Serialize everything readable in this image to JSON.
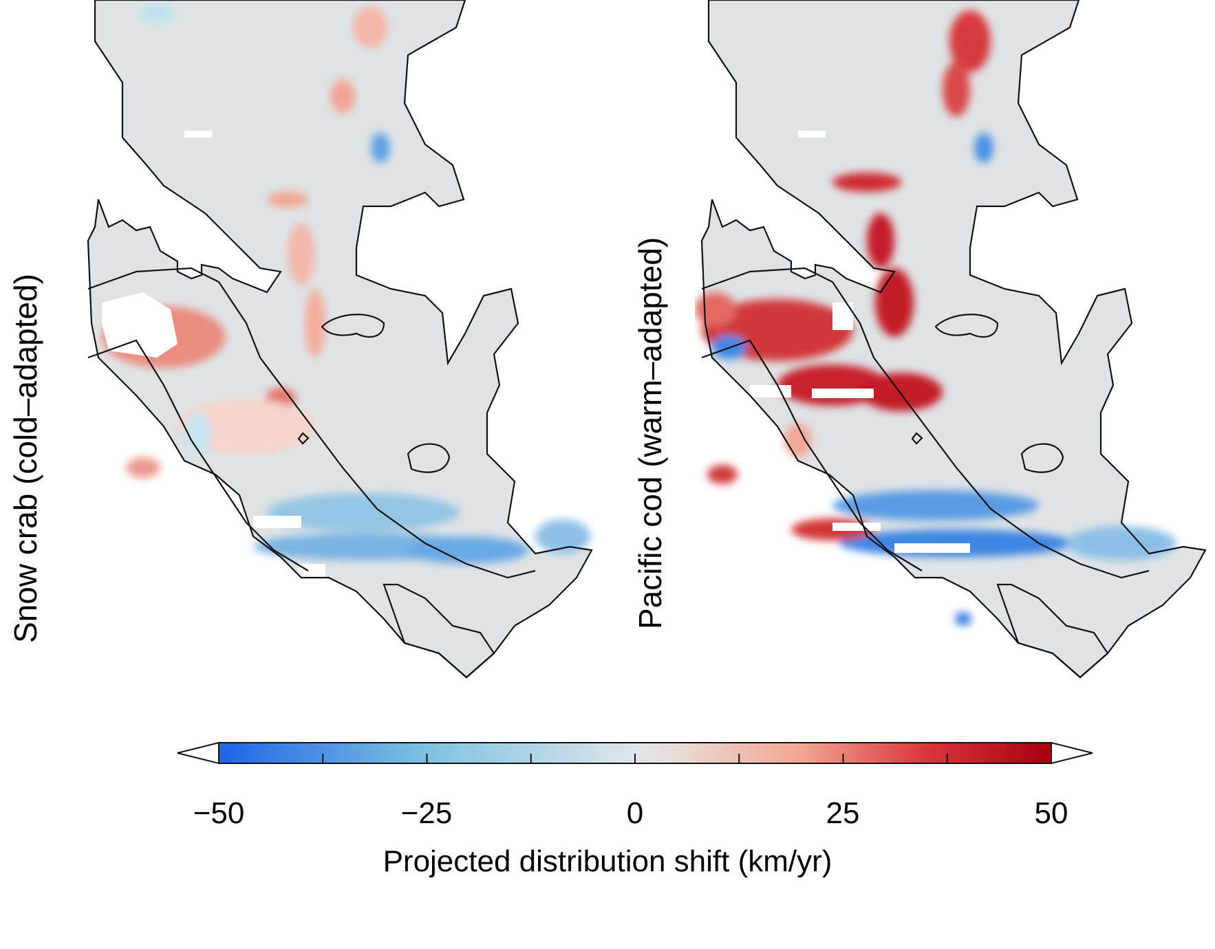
{
  "panels": [
    {
      "label": "Snow crab (cold–adapted)"
    },
    {
      "label": "Pacific cod (warm–adapted)"
    }
  ],
  "colorbar": {
    "title": "Projected distribution shift (km/yr)",
    "tick_labels": [
      "−50",
      "−25",
      "0",
      "25",
      "50"
    ],
    "min": -50,
    "max": 50,
    "color_stops": [
      "#1f63e6",
      "#7fc3e0",
      "#dfe6ea",
      "#e8dcd6",
      "#f2a590",
      "#d9363a",
      "#a6000f"
    ]
  }
}
